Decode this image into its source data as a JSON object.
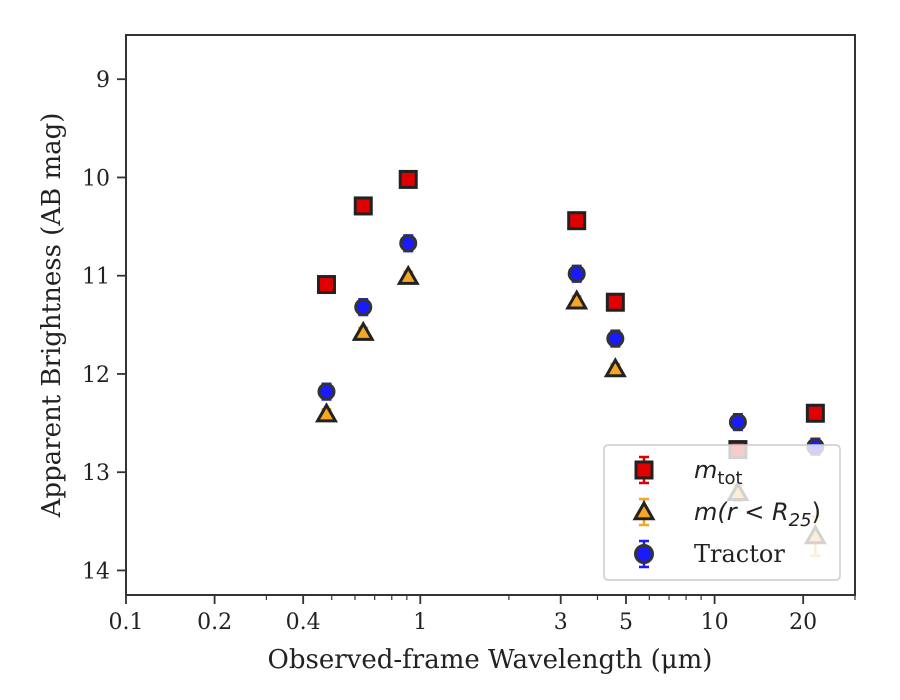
{
  "chart_data": {
    "type": "scatter",
    "title": "",
    "xlabel": "Observed-frame Wavelength (μm)",
    "ylabel": "Apparent Brightness (AB mag)",
    "xscale": "log",
    "xlim": [
      0.1,
      30
    ],
    "ylim": [
      14.25,
      8.55
    ],
    "y_inverted": true,
    "x_ticks": [
      {
        "value": 0.1,
        "label": "0.1"
      },
      {
        "value": 0.2,
        "label": "0.2"
      },
      {
        "value": 0.4,
        "label": "0.4"
      },
      {
        "value": 1,
        "label": "1"
      },
      {
        "value": 3,
        "label": "3"
      },
      {
        "value": 5,
        "label": "5"
      },
      {
        "value": 10,
        "label": "10"
      },
      {
        "value": 20,
        "label": "20"
      }
    ],
    "y_ticks": [
      9,
      10,
      11,
      12,
      13,
      14
    ],
    "grid": false,
    "legend_position": "bottom-right",
    "series": [
      {
        "name": "m_tot",
        "legend_main": "m",
        "legend_sub": "tot",
        "marker": "square",
        "fill": "#e00000",
        "edge": "#222222",
        "errcolor": "#dd0000",
        "points": [
          {
            "x": 0.48,
            "y": 11.09,
            "err": 0.08
          },
          {
            "x": 0.64,
            "y": 10.29,
            "err": 0.08
          },
          {
            "x": 0.91,
            "y": 10.02,
            "err": 0.08
          },
          {
            "x": 3.4,
            "y": 10.44,
            "err": 0.08
          },
          {
            "x": 4.6,
            "y": 11.27,
            "err": 0.08
          },
          {
            "x": 12.0,
            "y": 12.77,
            "err": 0.08
          },
          {
            "x": 22.0,
            "y": 12.4,
            "err": 0.08
          }
        ]
      },
      {
        "name": "m(r < R_25)",
        "legend_main": "m(r < R",
        "legend_sub": "25",
        "legend_tail": ")",
        "marker": "triangle",
        "fill": "#f5a623",
        "edge": "#222222",
        "errcolor": "#f5a623",
        "points": [
          {
            "x": 0.48,
            "y": 12.41,
            "err": 0.05
          },
          {
            "x": 0.64,
            "y": 11.58,
            "err": 0.05
          },
          {
            "x": 0.91,
            "y": 11.01,
            "err": 0.05
          },
          {
            "x": 3.4,
            "y": 11.26,
            "err": 0.05
          },
          {
            "x": 4.6,
            "y": 11.95,
            "err": 0.05
          },
          {
            "x": 12.0,
            "y": 13.21,
            "err": 0.08
          },
          {
            "x": 22.0,
            "y": 13.65,
            "err": 0.2
          }
        ]
      },
      {
        "name": "Tractor",
        "legend_main": "Tractor",
        "marker": "circle",
        "fill": "#1a1aff",
        "edge": "#333333",
        "errcolor": "#1a1aff",
        "points": [
          {
            "x": 0.48,
            "y": 12.18,
            "err": 0.08
          },
          {
            "x": 0.64,
            "y": 11.32,
            "err": 0.08
          },
          {
            "x": 0.91,
            "y": 10.67,
            "err": 0.08
          },
          {
            "x": 3.4,
            "y": 10.98,
            "err": 0.08
          },
          {
            "x": 4.6,
            "y": 11.64,
            "err": 0.08
          },
          {
            "x": 12.0,
            "y": 12.49,
            "err": 0.08
          },
          {
            "x": 22.0,
            "y": 12.74,
            "err": 0.08
          }
        ]
      }
    ]
  }
}
